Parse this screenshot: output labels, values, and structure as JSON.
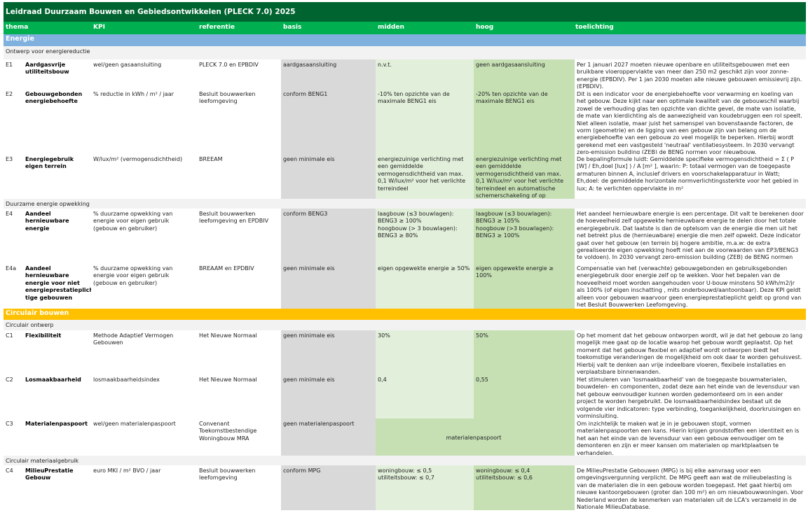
{
  "title": "Leidraad Duurzaam Bouwen en Gebiedsontwikkelen (PLECK 7.0) 2025",
  "colors": {
    "title_bg": "#006430",
    "header_bg": "#00b050",
    "energie": "#7fb0de",
    "circulair": "#ffc000",
    "basis": "#d9d9d9",
    "midden": "#e2efda",
    "hoog": "#c6e0b4",
    "subheader": "#f2f2f2"
  },
  "headers": [
    "thema",
    "KPI",
    "referentie",
    "basis",
    "midden",
    "hoog",
    "toelichting"
  ],
  "sections": [
    {
      "title": "Energie",
      "color": "#7fb0de",
      "groups": [
        {
          "title": "Ontwerp voor energiereductie",
          "rows": [
            {
              "id": "E1",
              "thema": "Aardgasvrije utiliteitsbouw",
              "kpi": "wel/geen gasaansluiting",
              "referentie": "PLECK 7.0 en EPBDIV",
              "basis": "aardgasaansluiting",
              "midden": "n.v.t.",
              "hoog": "geen aardgasaansluiting",
              "toelichting": "Per 1 januari 2027 moeten nieuwe openbare en utiliteitsgebouwen met een bruikbare vloeroppervlakte van meer dan 250 m2 geschikt zijn voor zonne-energie (EPBDIV). Per 1 jan 2030 moeten alle nieuwe gebouwen emissievrij zijn. (EPBDIV)."
            },
            {
              "id": "E2",
              "thema": "Gebouwgebonden energiebehoefte",
              "kpi": "% reductie in kWh / m² / jaar",
              "referentie": "Besluit bouwwerken leefomgeving",
              "basis": "conform BENG1",
              "midden": "-10% ten opzichte van de maximale BENG1 eis",
              "hoog": "-20% ten opzichte van de maximale BENG1 eis",
              "toelichting": "Dit is een indicator voor de energiebehoefte voor verwarming en koeling van het gebouw. Deze kijkt naar een optimale kwaliteit van de gebouwschil waarbij zowel de verhouding glas ten opzichte van dichte gevel, de mate van isolatie, de mate van kierdichting als de aanwezigheid van koudebruggen een rol speelt. Niet alleen isolatie, maar juist het samenspel van bovenstaande factoren, de vorm (geometrie) en de ligging van een gebouw zijn van belang om de energiebehoefte van een gebouw zo veel mogelijk te beperken. Hierbij wordt gerekend met een vastgesteld 'neutraal' ventilatiesysteem. In 2030 vervangt zero-emission building (ZEB) de BENG normen voor nieuwbouw."
            },
            {
              "id": "E3",
              "thema": "Energiegebruik eigen terrein",
              "kpi": "W/lux/m² (vermogensdichtheid)",
              "referentie": "BREEAM",
              "basis": "geen minimale eis",
              "midden": "energiezuinige verlichting  met een gemiddelde vermogensdichtheid van max. 0,1 W/lux/m² voor het verlichte terreindeel",
              "hoog": "energiezuinige verlichting  met een gemiddelde vermogensdichtheid  van max. 0,1 W/lux/m² voor het verlichte terreindeel en automatische schemerschakeling of op",
              "toelichting": "De bepalingformule luidt: Gemiddelde specifieke vermogensdichtheid = Σ ( P [W] / Eh,doel [lux] ) / A [m² ], waarin: P: totaal vermogen van de toegepaste armaturen binnen A, inclusief drivers en voorschakelapparatuur in Watt; Eh,doel: de gemiddelde horizontale normverlichtingssterkte voor het gebied in lux; A: te verlichten oppervlakte in m²"
            }
          ]
        },
        {
          "title": "Duurzame energie opwekking",
          "rows": [
            {
              "id": "E4",
              "thema": "Aandeel hernieuwbare energie",
              "kpi": "% duurzame opwekking van energie voor eigen gebruik (gebouw en gebruiker)",
              "referentie": "Besluit bouwwerken leefomgeving en EPDBIV",
              "basis": "conform BENG3",
              "midden": "laagbouw (≤3 bouwlagen):\nBENG3  ≥ 100%\nhoogbouw (> 3 bouwlagen):\nBENG3  ≥ 80%",
              "hoog": "laagbouw (≤3 bouwlagen):\nBENG3  ≥ 105%\nhoogbouw (>3 bouwlagen):\nBENG3  ≥ 100%",
              "toelichting": "Het aandeel hernieuwbare energie is een percentage. Dit valt te berekenen door de hoeveelheid zelf opgewekte hernieuwbare energie te delen door het totale energiegebruik. Dat laatste is dan de optelsom van de energie die men uit het net betrekt plus de (hernieuwbare) energie die men zelf opwekt. Deze indicator gaat over het gebouw (en terrein bij hogere ambitie, m.a.w: de extra gerealiseerde eigen opwekking hoeft niet aan de voorwaarden van EP3/BENG3 te voldoen). In 2030 vervangt zero-emission building (ZEB) de BENG normen voor nieuwbouw."
            },
            {
              "id": "E4a",
              "thema": "Aandeel hernieuwbare energie voor niet energieprestatieplich tige gebouwen",
              "kpi": "% duurzame opwekking van energie voor eigen gebruik (gebouw en gebruiker)",
              "referentie": "BREAAM en EPDBIV",
              "basis": "geen minimale eis",
              "midden": "eigen opgewekte energie  ≥ 50%",
              "hoog": "eigen opgewekte energie ≥ 100%",
              "toelichting": "Compensatie van het (verwachte) gebouwgebonden en gebruiksgebonden energiegebruik door energie zelf op te wekken. Voor het bepalen van de hoeveelheid moet worden aangehouden voor U-bouw minstens 50 kWh/m2/jr als 100% (of eigen inschatting , mits onderbouwd/aantoonbaar).  Deze KPI geldt alleen voor gebouwen waarvoor geen energieprestatieplicht geldt op grond van het Besluit Bouwwerken Leefomgeving."
            }
          ]
        }
      ]
    },
    {
      "title": "Circulair bouwen",
      "color": "#ffc000",
      "groups": [
        {
          "title": "Circulair ontwerp",
          "rows": [
            {
              "id": "C1",
              "thema": "Flexibiliteit",
              "kpi": "Methode Adaptief Vermogen Gebouwen",
              "referentie": "Het Nieuwe Normaal",
              "basis": "geen minimale eis",
              "midden": "30%",
              "hoog": "50%",
              "toelichting": "Op het moment dat het gebouw ontworpen wordt, wil je dat het gebouw zo lang mogelijk mee gaat op de locatie waarop het gebouw wordt geplaatst. Op het moment dat het gebouw flexibel en adaptief wordt ontworpen biedt het toekomstige veranderingen de mogelijkheid om ook daar te worden gehuisvest. Hierbij valt te denken aan vrije indeelbare vloeren, flexibele installaties en verplaatsbare binnenwanden."
            },
            {
              "id": "C2",
              "thema": "Losmaakbaarheid",
              "kpi": "losmaakbaarheidsindex",
              "referentie": "Het Nieuwe Normaal",
              "basis": "geen minimale eis",
              "midden": "0,4",
              "hoog": "0,55",
              "toelichting": "Het stimuleren van 'losmaakbaarheid' van de toegepaste bouwmaterialen, bouwdelen- en componenten, zodat deze aan het einde van de levensduur van het gebouw eenvoudiger kunnen worden gedemonteerd om in een ander project te worden hergebruikt. De losmaakbaarheidsindex bestaat uit de volgende vier indicatoren: type verbinding, toegankelijkheid, doorkruisingen en vorminsluiting."
            },
            {
              "id": "C3",
              "thema": "Materialenpaspoort",
              "kpi": "wel/geen materialenpaspoort",
              "referentie": "Convenant Toekomstbestendige\n Woningbouw MRA",
              "basis": "geen materialenpaspoort",
              "midden_hoog": "materialenpaspoort",
              "toelichting": "Om inzichtelijk te maken wat je in je gebouwen stopt, vormen materialenpaspoorten een kans. Hierin krijgen grondstoffen een identiteit en is het aan het einde van de levensduur van een gebouw eenvoudiger om te demonteren en zijn er meer kansen om materialen op marktplaatsen te verhandelen."
            }
          ]
        },
        {
          "title": "Circulair materiaalgebruik",
          "rows": [
            {
              "id": "C4",
              "thema": "MilieuPrestatie Gebouw",
              "kpi": "euro MKI / m² BVO / jaar",
              "referentie": "Besluit bouwwerken leefomgeving",
              "basis": "conform MPG",
              "midden": "woningbouw: ≤ 0,5\nutiliteitsbouw: ≤ 0,7",
              "hoog": "woningbouw: ≤ 0,4\nutiliteitsbouw: ≤ 0,6",
              "toelichting": "De MilieuPrestatie Gebouwen (MPG) is bij elke aanvraag voor een omgevingsvergunning verplicht. De MPG geeft aan wat de milieubelasting is van de materialen die in een gebouw worden toegepast. Het gaat hierbij om nieuwe kantoorgebouwen (groter dan 100 m²) en om nieuwbouwwoningen. Voor Nederland worden de kenmerken van materialen uit de LCA's verzameld in de Nationale MilieuDatabase."
            }
          ]
        }
      ]
    }
  ]
}
